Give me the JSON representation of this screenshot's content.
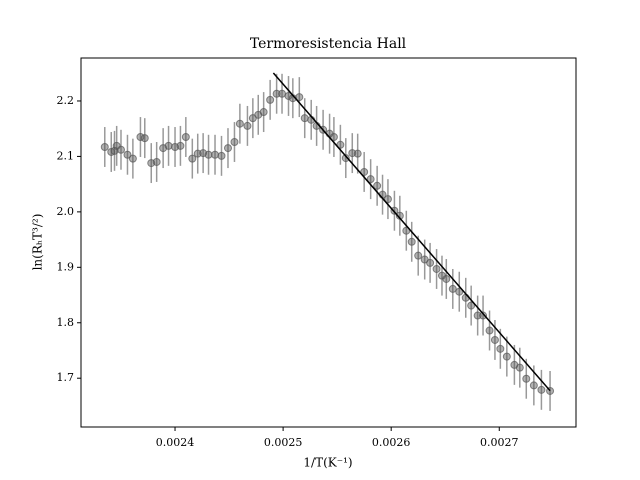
{
  "chart_data": {
    "type": "errorbar",
    "title": "Termoresistencia Hall",
    "xlabel": "1/T(K⁻¹)",
    "ylabel": "ln(RₕT³/²)",
    "x": [
      0.002335,
      0.002341,
      0.002344,
      0.002346,
      0.00235,
      0.002356,
      0.002361,
      0.002368,
      0.002372,
      0.002378,
      0.002383,
      0.002389,
      0.002394,
      0.0024,
      0.002405,
      0.00241,
      0.002416,
      0.002421,
      0.002426,
      0.002431,
      0.002437,
      0.002443,
      0.002449,
      0.002455,
      0.00246,
      0.002467,
      0.002472,
      0.002477,
      0.002482,
      0.002488,
      0.002494,
      0.002499,
      0.002505,
      0.002509,
      0.002515,
      0.00252,
      0.002526,
      0.002531,
      0.002537,
      0.002543,
      0.002547,
      0.002553,
      0.002558,
      0.002564,
      0.002569,
      0.002575,
      0.002581,
      0.002587,
      0.002592,
      0.002597,
      0.002603,
      0.002608,
      0.002614,
      0.002619,
      0.002625,
      0.002631,
      0.002636,
      0.002642,
      0.002647,
      0.002651,
      0.002657,
      0.002663,
      0.002669,
      0.002674,
      0.00268,
      0.002685,
      0.002691,
      0.002696,
      0.002701,
      0.002707,
      0.002714,
      0.002719,
      0.002725,
      0.002732,
      0.002739,
      0.002747
    ],
    "values": [
      2.117,
      2.108,
      2.11,
      2.119,
      2.112,
      2.103,
      2.096,
      2.135,
      2.133,
      2.088,
      2.09,
      2.115,
      2.119,
      2.117,
      2.119,
      2.135,
      2.096,
      2.105,
      2.106,
      2.103,
      2.103,
      2.101,
      2.115,
      2.126,
      2.159,
      2.155,
      2.169,
      2.175,
      2.18,
      2.202,
      2.213,
      2.213,
      2.209,
      2.205,
      2.207,
      2.169,
      2.166,
      2.155,
      2.148,
      2.141,
      2.135,
      2.121,
      2.097,
      2.106,
      2.105,
      2.072,
      2.059,
      2.047,
      2.031,
      2.023,
      2.002,
      1.993,
      1.966,
      1.946,
      1.921,
      1.914,
      1.908,
      1.897,
      1.885,
      1.879,
      1.861,
      1.856,
      1.845,
      1.831,
      1.813,
      1.813,
      1.786,
      1.769,
      1.753,
      1.739,
      1.724,
      1.719,
      1.699,
      1.687,
      1.679,
      1.677
    ],
    "error": 0.036,
    "color": "#555555",
    "error_color": "#999999",
    "fit": {
      "x": [
        0.002491,
        0.002747
      ],
      "values": [
        2.2505,
        1.6775
      ],
      "color": "#000000"
    },
    "xlim": [
      0.002313,
      0.002771
    ],
    "ylim": [
      1.612,
      2.2775
    ],
    "xticks": [
      0.0024,
      0.0025,
      0.0026,
      0.0027
    ],
    "yticks": [
      1.7,
      1.8,
      1.9,
      {
        "value": 2,
        "label": "2.0"
      },
      2.1,
      2.2
    ]
  }
}
